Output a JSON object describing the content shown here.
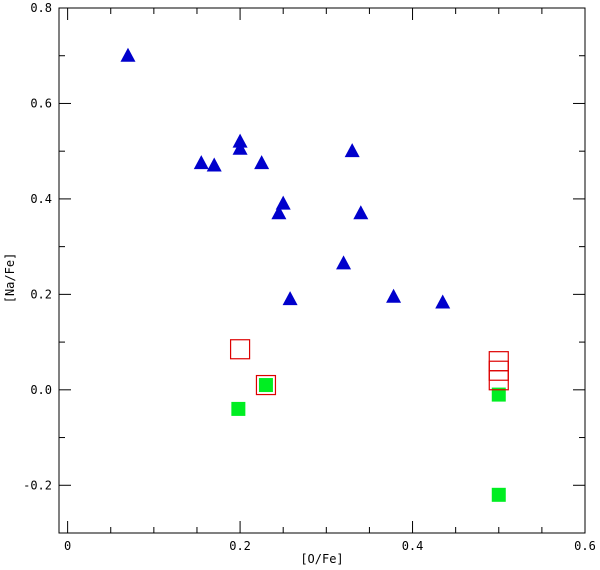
{
  "chart_data": {
    "type": "scatter",
    "title": "",
    "xlabel": "[O/Fe]",
    "ylabel": "[Na/Fe]",
    "xlim": [
      -0.01,
      0.6
    ],
    "ylim": [
      -0.3,
      0.8
    ],
    "x_ticks": [
      0,
      0.2,
      0.4,
      0.6
    ],
    "x_tick_labels": [
      "0",
      "0.2",
      "0.4",
      "0.6"
    ],
    "y_ticks": [
      -0.2,
      0.0,
      0.2,
      0.4,
      0.6,
      0.8
    ],
    "y_tick_labels": [
      "-0.2",
      "0.0",
      "0.2",
      "0.4",
      "0.6",
      "0.8"
    ],
    "grid": false,
    "series": [
      {
        "marker": "filled-triangle",
        "color": "#0000cc",
        "points": [
          {
            "x": 0.07,
            "y": 0.7
          },
          {
            "x": 0.155,
            "y": 0.475
          },
          {
            "x": 0.17,
            "y": 0.47
          },
          {
            "x": 0.2,
            "y": 0.52
          },
          {
            "x": 0.2,
            "y": 0.505
          },
          {
            "x": 0.225,
            "y": 0.475
          },
          {
            "x": 0.245,
            "y": 0.37
          },
          {
            "x": 0.25,
            "y": 0.39
          },
          {
            "x": 0.258,
            "y": 0.19
          },
          {
            "x": 0.32,
            "y": 0.265
          },
          {
            "x": 0.33,
            "y": 0.5
          },
          {
            "x": 0.34,
            "y": 0.37
          },
          {
            "x": 0.378,
            "y": 0.195
          },
          {
            "x": 0.435,
            "y": 0.183
          }
        ]
      },
      {
        "marker": "filled-square",
        "color": "#00ee22",
        "points": [
          {
            "x": 0.198,
            "y": -0.04
          },
          {
            "x": 0.23,
            "y": 0.01
          },
          {
            "x": 0.5,
            "y": -0.01
          },
          {
            "x": 0.5,
            "y": -0.22
          }
        ]
      },
      {
        "marker": "open-square",
        "color": "#dd0000",
        "points": [
          {
            "x": 0.2,
            "y": 0.085
          },
          {
            "x": 0.23,
            "y": 0.01
          },
          {
            "x": 0.5,
            "y": 0.06
          },
          {
            "x": 0.5,
            "y": 0.04
          },
          {
            "x": 0.5,
            "y": 0.02
          }
        ]
      }
    ]
  }
}
